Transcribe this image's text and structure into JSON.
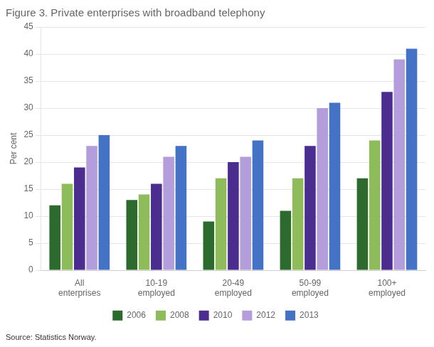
{
  "chart_data": {
    "type": "bar",
    "title": "Figure 3. Private enterprises with broadband telephony",
    "ylabel": "Per cent",
    "categories": [
      "All\nenterprises",
      "10-19\nemployed",
      "20-49\nemployed",
      "50-99\nemployed",
      "100+\nemployed"
    ],
    "series": [
      {
        "name": "2006",
        "color": "#2d6a2d",
        "values": [
          12,
          13,
          9,
          11,
          17
        ]
      },
      {
        "name": "2008",
        "color": "#8fbc5a",
        "values": [
          16,
          14,
          17,
          17,
          24
        ]
      },
      {
        "name": "2010",
        "color": "#4b2d8f",
        "values": [
          19,
          16,
          20,
          23,
          33
        ]
      },
      {
        "name": "2012",
        "color": "#b39ddb",
        "values": [
          23,
          21,
          21,
          30,
          39
        ]
      },
      {
        "name": "2013",
        "color": "#4472c4",
        "values": [
          25,
          23,
          24,
          31,
          41
        ]
      }
    ],
    "ylim": [
      0,
      45
    ],
    "yticks": [
      0,
      5,
      10,
      15,
      20,
      25,
      30,
      35,
      40,
      45
    ],
    "grid": true,
    "legend": "bottom",
    "annotations": [
      "Source: Statistics Norway."
    ]
  }
}
